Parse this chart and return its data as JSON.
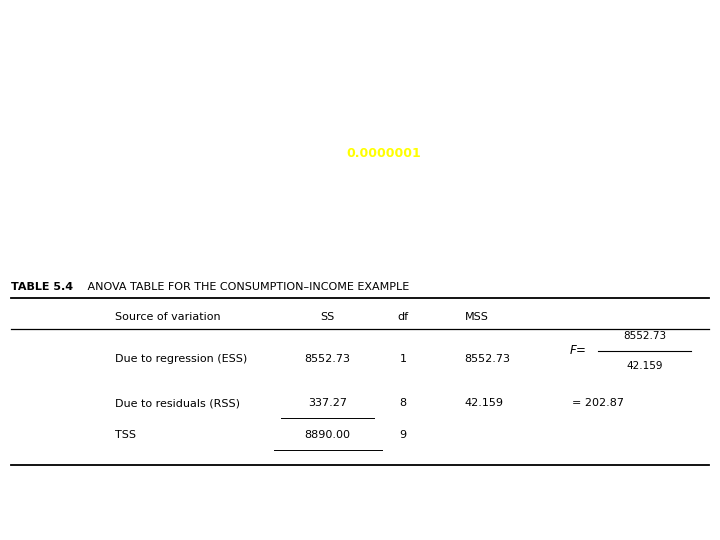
{
  "bg_dark_color": "#1e2d78",
  "bg_header_stripe": "#7080b0",
  "bg_white": "#ffffff",
  "text_white": "#ffffff",
  "text_black": "#1a1a1a",
  "highlight_yellow": "#ffff00",
  "title_bold": "TABLE 5.4",
  "title_rest": "   ANOVA TABLE FOR THE CONSUMPTION–INCOME EXAMPLE",
  "col_headers": [
    "Source of variation",
    "SS",
    "df",
    "MSS"
  ],
  "row1_label": "Due to regression (ESS)",
  "row1_ss": "8552.73",
  "row1_df": "1",
  "row1_mss": "8552.73",
  "row2_label": "Due to residuals (RSS)",
  "row2_ss": "337.27",
  "row2_df": "8",
  "row2_mss": "42.159",
  "row3_label": "TSS",
  "row3_ss": "8890.00",
  "row3_df": "9",
  "f_num": "8552.73",
  "f_den": "42.159",
  "f_eq": "= 202.87"
}
